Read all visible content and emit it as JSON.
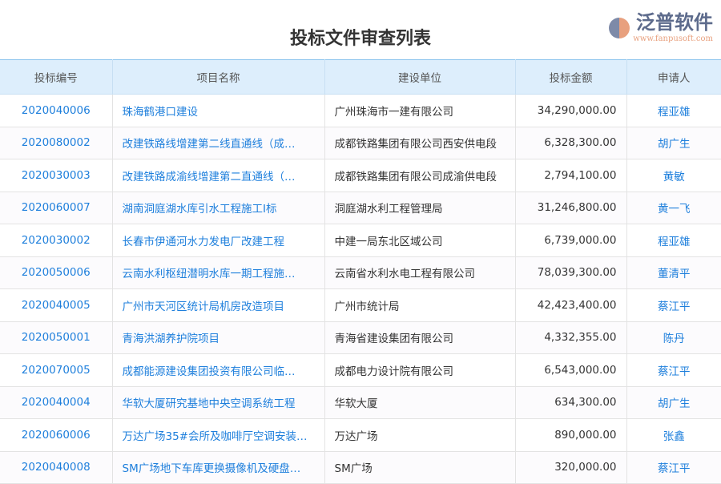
{
  "title": "投标文件审查列表",
  "columns": [
    "投标编号",
    "项目名称",
    "建设单位",
    "投标金额",
    "申请人"
  ],
  "rows": [
    [
      "2020040006",
      "珠海鹤港口建设",
      "广州珠海市一建有限公司",
      "34,290,000.00",
      "程亚雄"
    ],
    [
      "2020080002",
      "改建铁路线增建第二线直通线（成…",
      "成都铁路集团有限公司西安供电段",
      "6,328,300.00",
      "胡广生"
    ],
    [
      "2020030003",
      "改建铁路成渝线增建第二直通线（…",
      "成都铁路集团有限公司成渝供电段",
      "2,794,100.00",
      "黄敏"
    ],
    [
      "2020060007",
      "湖南洞庭湖水库引水工程施工I标",
      "洞庭湖水利工程管理局",
      "31,246,800.00",
      "黄一飞"
    ],
    [
      "2020030002",
      "长春市伊通河水力发电厂改建工程",
      "中建一局东北区域公司",
      "6,739,000.00",
      "程亚雄"
    ],
    [
      "2020050006",
      "云南水利枢纽潜明水库一期工程施…",
      "云南省水利水电工程有限公司",
      "78,039,300.00",
      "董清平"
    ],
    [
      "2020040005",
      "广州市天河区统计局机房改造项目",
      "广州市统计局",
      "42,423,400.00",
      "蔡江平"
    ],
    [
      "2020050001",
      "青海洪湖养护院项目",
      "青海省建设集团有限公司",
      "4,332,355.00",
      "陈丹"
    ],
    [
      "2020070005",
      "成都能源建设集团投资有限公司临…",
      "成都电力设计院有限公司",
      "6,543,000.00",
      "蔡江平"
    ],
    [
      "2020040004",
      "华软大厦研究基地中央空调系统工程",
      "华软大厦",
      "634,300.00",
      "胡广生"
    ],
    [
      "2020060006",
      "万达广场35#会所及咖啡厅空调安装…",
      "万达广场",
      "890,000.00",
      "张鑫"
    ],
    [
      "2020040008",
      "SM广场地下车库更换摄像机及硬盘…",
      "SM广场",
      "320,000.00",
      "蔡江平"
    ]
  ],
  "watermark": {
    "text": "泛普软件",
    "url": "www.fanpusoft.com"
  },
  "colors": {
    "link": "#1e7fdc",
    "header_bg": "#ddeefc"
  }
}
